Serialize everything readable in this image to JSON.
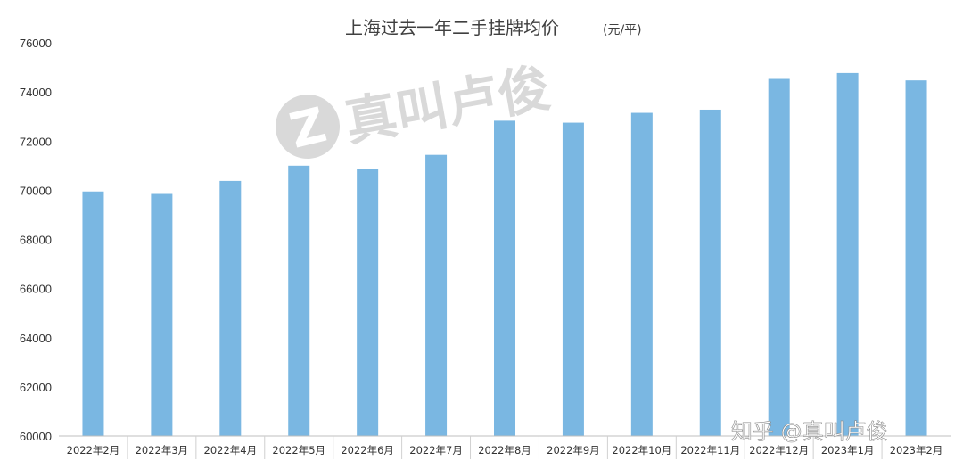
{
  "chart_data": {
    "type": "bar",
    "title": "上海过去一年二手挂牌均价",
    "unit": "(元/平)",
    "categories": [
      "2022年2月",
      "2022年3月",
      "2022年4月",
      "2022年5月",
      "2022年6月",
      "2022年7月",
      "2022年8月",
      "2022年9月",
      "2022年10月",
      "2022年11月",
      "2022年12月",
      "2023年1月",
      "2023年2月"
    ],
    "values": [
      69950,
      69850,
      70380,
      71000,
      70870,
      71440,
      72830,
      72750,
      73150,
      73280,
      74530,
      74770,
      74470
    ],
    "ylim": [
      60000,
      76000
    ],
    "yticks": [
      60000,
      62000,
      64000,
      66000,
      68000,
      70000,
      72000,
      74000,
      76000
    ],
    "xlabel": "",
    "ylabel": "",
    "grid": false,
    "bar_color": "#7ab7e2"
  },
  "watermark": {
    "logo_letter": "Z",
    "text": "真叫卢俊"
  },
  "credit": "知乎 @真叫卢俊"
}
